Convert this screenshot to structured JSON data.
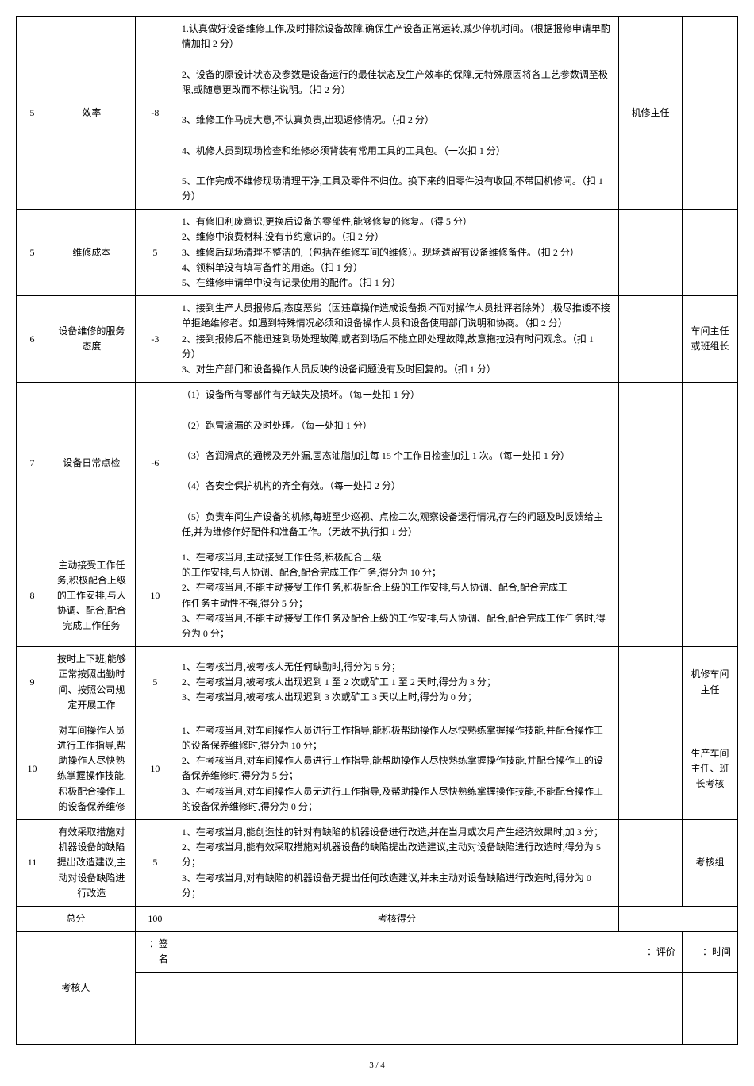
{
  "rows": [
    {
      "idx": "5",
      "name": "效率",
      "score": "-8",
      "dept": "机修主任",
      "note": "",
      "desc": "1.认真做好设备维修工作,及时排除设备故障,确保生产设备正常运转,减少停机时间。（根据报修申请单酌情加扣 2 分）\n\n2、设备的原设计状态及参数是设备运行的最佳状态及生产效率的保障,无特殊原因将各工艺参数调至极限,或随意更改而不标注说明。（扣 2 分）\n\n3、维修工作马虎大意,不认真负责,出现返修情况。（扣 2 分）\n\n4、机修人员到现场检查和维修必须背装有常用工具的工具包。（一次扣 1 分）\n\n5、工作完成不维修现场清理干净,工具及零件不归位。换下来的旧零件没有收回,不带回机修间。（扣 1 分）"
    },
    {
      "idx": "5",
      "name": "维修成本",
      "score": "5",
      "dept": "",
      "note": "",
      "desc": "1、有修旧利废意识,更换后设备的零部件,能够修复的修复。（得 5 分）\n2、维修中浪费材料,没有节约意识的。（扣 2 分）\n3、维修后现场清理不整洁的,（包括在维修车间的维修）。现场遗留有设备维修备件。（扣 2 分）\n4、领料单没有填写备件的用途。（扣 1 分）\n5、在维修申请单中没有记录使用的配件。（扣 1 分）"
    },
    {
      "idx": "6",
      "name": "设备维修的服务态度",
      "score": "-3",
      "dept": "",
      "note": "车间主任或班组长",
      "desc": "1、接到生产人员报修后,态度恶劣（因违章操作造成设备损坏而对操作人员批评者除外）,极尽推诿不接单拒绝维修者。如遇到特殊情况必须和设备操作人员和设备使用部门说明和协商。（扣 2 分）\n2、接到报修后不能迅速到场处理故障,或者到场后不能立即处理故障,故意拖拉没有时间观念。（扣 1 分）\n3、对生产部门和设备操作人员反映的设备问题没有及时回复的。（扣 1 分）"
    },
    {
      "idx": "7",
      "name": "设备日常点检",
      "score": "-6",
      "dept": "",
      "note": "",
      "desc": "（1）设备所有零部件有无缺失及损坏。（每一处扣 1 分）\n\n（2）跑冒滴漏的及时处理。（每一处扣 1 分）\n\n（3）各润滑点的通畅及无外漏,固态油脂加注每 15 个工作日检查加注 1 次。（每一处扣 1 分）\n\n（4）各安全保护机构的齐全有效。（每一处扣 2 分）\n\n（5）负责车间生产设备的机修,每班至少巡视、点检二次,观察设备运行情况,存在的问题及时反馈给主任,并为维修作好配件和准备工作。（无故不执行扣 1 分）"
    },
    {
      "idx": "8",
      "name": "主动接受工作任务,积极配合上级的工作安排,与人协调、配合,配合完成工作任务",
      "score": "10",
      "dept": "",
      "note": "",
      "desc": "1、在考核当月,主动接受工作任务,积极配合上级\n的工作安排,与人协调、配合,配合完成工作任务,得分为 10 分；\n2、在考核当月,不能主动接受工作任务,积极配合上级的工作安排,与人协调、配合,配合完成工\n作任务主动性不强,得分 5 分；\n3、在考核当月,不能主动接受工作任务及配合上级的工作安排,与人协调、配合,配合完成工作任务时,得分为 0 分；"
    },
    {
      "idx": "9",
      "name": "按时上下班,能够正常按照出勤时间、按照公司规定开展工作",
      "score": "5",
      "dept": "",
      "note": "机修车间主任",
      "desc": "1、在考核当月,被考核人无任何缺勤时,得分为 5 分；\n2、在考核当月,被考核人出现迟到 1 至 2 次或矿工 1 至 2 天时,得分为 3 分；\n3、在考核当月,被考核人出现迟到 3 次或矿工 3 天以上时,得分为 0 分；"
    },
    {
      "idx": "10",
      "name": "对车间操作人员进行工作指导,帮助操作人尽快熟练掌握操作技能,积极配合操作工的设备保养维修",
      "score": "10",
      "dept": "",
      "note": "生产车间主任、班长考核",
      "desc": "1、在考核当月,对车间操作人员进行工作指导,能积极帮助操作人尽快熟练掌握操作技能,并配合操作工的设备保养维修时,得分为 10 分；\n2、在考核当月,对车间操作人员进行工作指导,能帮助操作人尽快熟练掌握操作技能,并配合操作工的设备保养维修时,得分为 5 分；\n3、在考核当月,对车间操作人员无进行工作指导,及帮助操作人尽快熟练掌握操作技能,不能配合操作工的设备保养维修时,得分为 0 分；"
    },
    {
      "idx": "11",
      "name": "有效采取措施对机器设备的缺陷提出改造建议,主动对设备缺陷进行改造",
      "score": "5",
      "dept": "",
      "note": "考核组",
      "desc": "1、在考核当月,能创造性的针对有缺陷的机器设备进行改造,并在当月或次月产生经济效果时,加 3 分；\n2、在考核当月,能有效采取措施对机器设备的缺陷提出改造建议,主动对设备缺陷进行改造时,得分为 5 分；\n3、在考核当月,对有缺陷的机器设备无提出任何改造建议,并未主动对设备缺陷进行改造时,得分为 0 分；"
    }
  ],
  "total": {
    "label": "总分",
    "score": "100",
    "resultLabel": "考核得分"
  },
  "signature": {
    "appraiser": "考核人",
    "sign": "：签名",
    "rating": "：评价",
    "time": "：时间"
  },
  "pageNumber": "3 / 4"
}
